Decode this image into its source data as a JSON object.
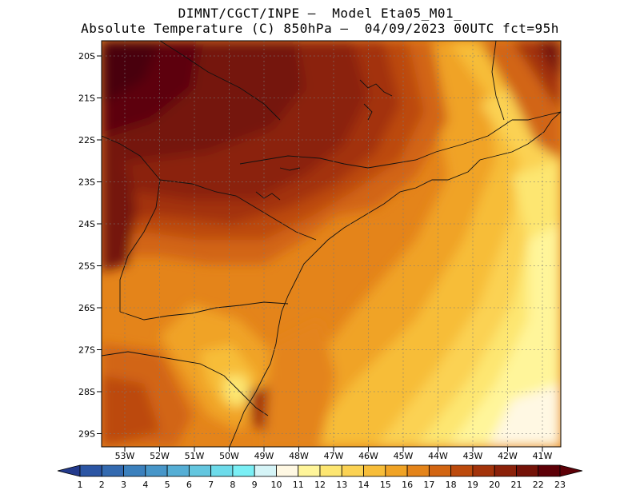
{
  "header": {
    "line1": "DIMNT/CGCT/INPE –  Model Eta05_M01_",
    "line2": "Absolute Temperature (C) 850hPa –  04/09/2023 00UTC fct=95h"
  },
  "map": {
    "lat_labels": [
      "20S",
      "21S",
      "22S",
      "23S",
      "24S",
      "25S",
      "26S",
      "27S",
      "28S",
      "29S"
    ],
    "lon_labels": [
      "53W",
      "52W",
      "51W",
      "50W",
      "49W",
      "48W",
      "47W",
      "46W",
      "45W",
      "44W",
      "43W",
      "42W",
      "41W"
    ],
    "grid": "dotted"
  },
  "colorbar": {
    "labels": [
      "1",
      "2",
      "3",
      "4",
      "5",
      "6",
      "7",
      "8",
      "9",
      "10",
      "11",
      "12",
      "13",
      "14",
      "15",
      "16",
      "17",
      "18",
      "19",
      "20",
      "21",
      "22",
      "23"
    ],
    "colors": [
      "#233a8c",
      "#2b55a4",
      "#336ab0",
      "#3b80bd",
      "#4796c9",
      "#55aed5",
      "#63c6df",
      "#6ddbea",
      "#7aeff5",
      "#d5f4f7",
      "#fff8e3",
      "#fff59a",
      "#fde671",
      "#fbd253",
      "#f7bd39",
      "#f0a325",
      "#e4841a",
      "#d26512",
      "#bc4a0c",
      "#a3330a",
      "#8b2109",
      "#741208",
      "#5d0007"
    ]
  }
}
